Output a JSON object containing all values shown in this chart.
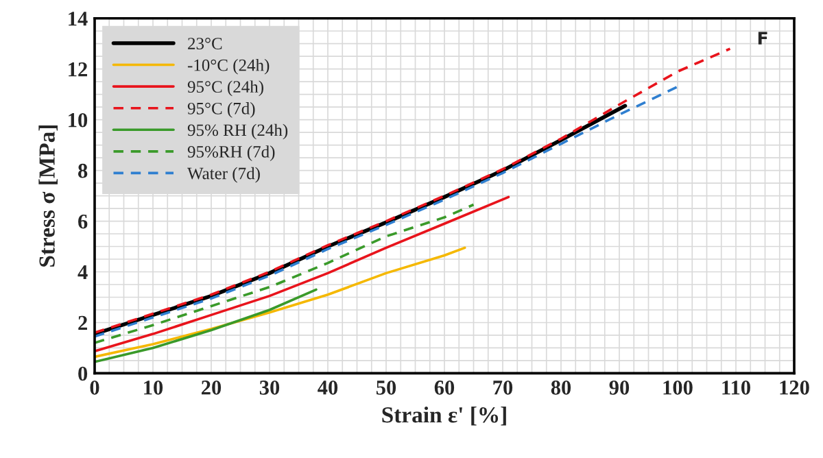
{
  "chart_data": {
    "type": "line",
    "xlabel": "Strain ε' [%]",
    "ylabel": "Stress σ [MPa]",
    "xlim": [
      0,
      120
    ],
    "xticks": [
      0,
      10,
      20,
      30,
      40,
      50,
      60,
      70,
      80,
      90,
      100,
      110,
      120
    ],
    "ylim": [
      0,
      14
    ],
    "yticks": [
      0,
      2,
      4,
      6,
      8,
      10,
      12,
      14
    ],
    "grid": true,
    "legend": "top left",
    "annotations": [
      "F"
    ],
    "series": [
      {
        "name": "23°C",
        "color": "#000000",
        "line_style": "solid",
        "x": [
          0,
          10,
          20,
          30,
          40,
          50,
          60,
          70,
          80,
          91
        ],
        "values": [
          1.55,
          2.3,
          3.05,
          3.95,
          5.0,
          5.95,
          6.95,
          8.0,
          9.2,
          10.55
        ]
      },
      {
        "name": "-10°C (24h)",
        "color": "#f5b800",
        "line_style": "solid",
        "x": [
          0,
          10,
          20,
          30,
          40,
          50,
          60,
          63.5
        ],
        "values": [
          0.65,
          1.15,
          1.75,
          2.4,
          3.1,
          3.95,
          4.65,
          4.95
        ]
      },
      {
        "name": "95°C (24h)",
        "color": "#e8141c",
        "line_style": "solid",
        "x": [
          0,
          10,
          20,
          30,
          40,
          50,
          60,
          71
        ],
        "values": [
          0.87,
          1.55,
          2.3,
          3.05,
          3.95,
          4.95,
          5.9,
          6.95
        ]
      },
      {
        "name": "95°C (7d)",
        "color": "#e8141c",
        "line_style": "dashed",
        "x": [
          0,
          10,
          20,
          30,
          40,
          50,
          60,
          70,
          80,
          90,
          100,
          109
        ],
        "values": [
          1.6,
          2.35,
          3.1,
          4.0,
          5.05,
          6.0,
          7.0,
          8.05,
          9.25,
          10.6,
          11.9,
          12.8
        ]
      },
      {
        "name": "95% RH (24h)",
        "color": "#3a9a2a",
        "line_style": "solid",
        "x": [
          0,
          10,
          20,
          30,
          38
        ],
        "values": [
          0.45,
          1.0,
          1.7,
          2.5,
          3.3
        ]
      },
      {
        "name": "95%RH (7d)",
        "color": "#3a9a2a",
        "line_style": "dashed",
        "x": [
          0,
          10,
          20,
          30,
          40,
          50,
          60,
          65
        ],
        "values": [
          1.2,
          1.9,
          2.65,
          3.4,
          4.35,
          5.4,
          6.15,
          6.65
        ]
      },
      {
        "name": "Water (7d)",
        "color": "#2f7fd0",
        "line_style": "dashed",
        "x": [
          0,
          10,
          20,
          30,
          40,
          50,
          60,
          70,
          80,
          90,
          100
        ],
        "values": [
          1.45,
          2.2,
          2.95,
          3.85,
          4.9,
          5.85,
          6.85,
          7.9,
          9.05,
          10.2,
          11.3
        ]
      }
    ]
  }
}
